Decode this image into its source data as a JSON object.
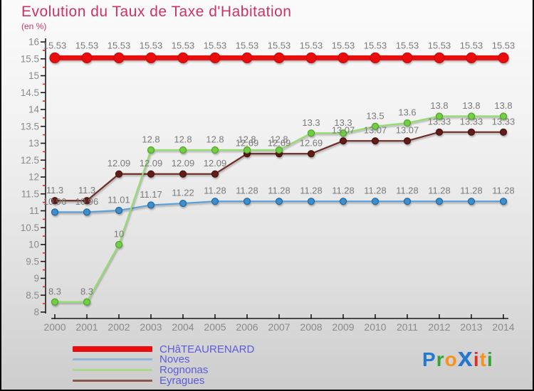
{
  "header": {
    "title": "Evolution du Taux de Taxe d'Habitation",
    "subtitle": "(en %)",
    "title_color": "#cb3365"
  },
  "chart_data": {
    "type": "line",
    "title": "Evolution du Taux de Taxe d'Habitation",
    "ylabel": "(en %)",
    "x": [
      "2000",
      "2001",
      "2002",
      "2003",
      "2004",
      "2005",
      "2006",
      "2007",
      "2008",
      "2009",
      "2010",
      "2011",
      "2012",
      "2013",
      "2014"
    ],
    "ylim": [
      8,
      16
    ],
    "y_major_step": 0.5,
    "y_minor_step": 0.25,
    "grid": false,
    "legend_position": "bottom-left",
    "axis_color": "#1a1a1a",
    "tick_label_color": "#8a8a8a",
    "minor_tick_color": "#d42a2a",
    "data_label_color": "#7a7a7a",
    "series": [
      {
        "name": "CHâTEAURENARD",
        "values": [
          15.53,
          15.53,
          15.53,
          15.53,
          15.53,
          15.53,
          15.53,
          15.53,
          15.53,
          15.53,
          15.53,
          15.53,
          15.53,
          15.53,
          15.53
        ],
        "line_color": "#e90d0d",
        "marker_color": "#e90d0d",
        "marker_stroke": "#c40b0b",
        "line_width": 7,
        "marker_radius": 7
      },
      {
        "name": "Noves",
        "values": [
          10.96,
          10.96,
          11.01,
          11.17,
          11.22,
          11.28,
          11.28,
          11.28,
          11.28,
          11.28,
          11.28,
          11.28,
          11.28,
          11.28,
          11.28
        ],
        "line_color": "#5b9fd8",
        "marker_color": "#3d8ecb",
        "marker_stroke": "#22669c",
        "line_width": 2.2,
        "marker_radius": 4.5
      },
      {
        "name": "Eyragues",
        "values": [
          11.3,
          11.3,
          12.09,
          12.09,
          12.09,
          12.09,
          12.69,
          12.69,
          12.69,
          13.07,
          13.07,
          13.07,
          13.33,
          13.33,
          13.33
        ],
        "line_color": "#6f2d26",
        "marker_color": "#611d17",
        "marker_stroke": "#47120e",
        "line_width": 2.2,
        "marker_radius": 4.5
      },
      {
        "name": "Rognonas",
        "values": [
          8.3,
          8.3,
          10,
          12.8,
          12.8,
          12.8,
          12.8,
          12.8,
          13.3,
          13.3,
          13.5,
          13.6,
          13.8,
          13.8,
          13.8
        ],
        "line_color": "#93dc6e",
        "marker_color": "#71cf45",
        "marker_stroke": "#4fa32a",
        "line_width": 2.2,
        "marker_radius": 4.5
      }
    ]
  },
  "legend": {
    "text_color": "#5b5bdb",
    "items": [
      {
        "label": "CHâTEAURENARD",
        "swatch_color": "#e90d0d",
        "swatch_thickness": 8
      },
      {
        "label": "Noves",
        "swatch_color": "#8fb4d4",
        "swatch_thickness": 3
      },
      {
        "label": "Rognonas",
        "swatch_color": "#a9d98b",
        "swatch_thickness": 3
      },
      {
        "label": "Eyragues",
        "swatch_color": "#8a574d",
        "swatch_thickness": 3
      }
    ]
  },
  "logo": {
    "name": "Proxiti",
    "letters": [
      {
        "ch": "P",
        "color": "#2478d0",
        "big": false
      },
      {
        "ch": "r",
        "color": "#35a435",
        "big": false
      },
      {
        "ch": "o",
        "color": "#f6921e",
        "big": false
      },
      {
        "ch": "x",
        "color": "#2478d0",
        "big": true
      },
      {
        "ch": "i",
        "color": "#e0301e",
        "big": false
      },
      {
        "ch": "t",
        "color": "#f6921e",
        "big": false
      },
      {
        "ch": "i",
        "color": "#35a435",
        "big": false
      }
    ]
  }
}
